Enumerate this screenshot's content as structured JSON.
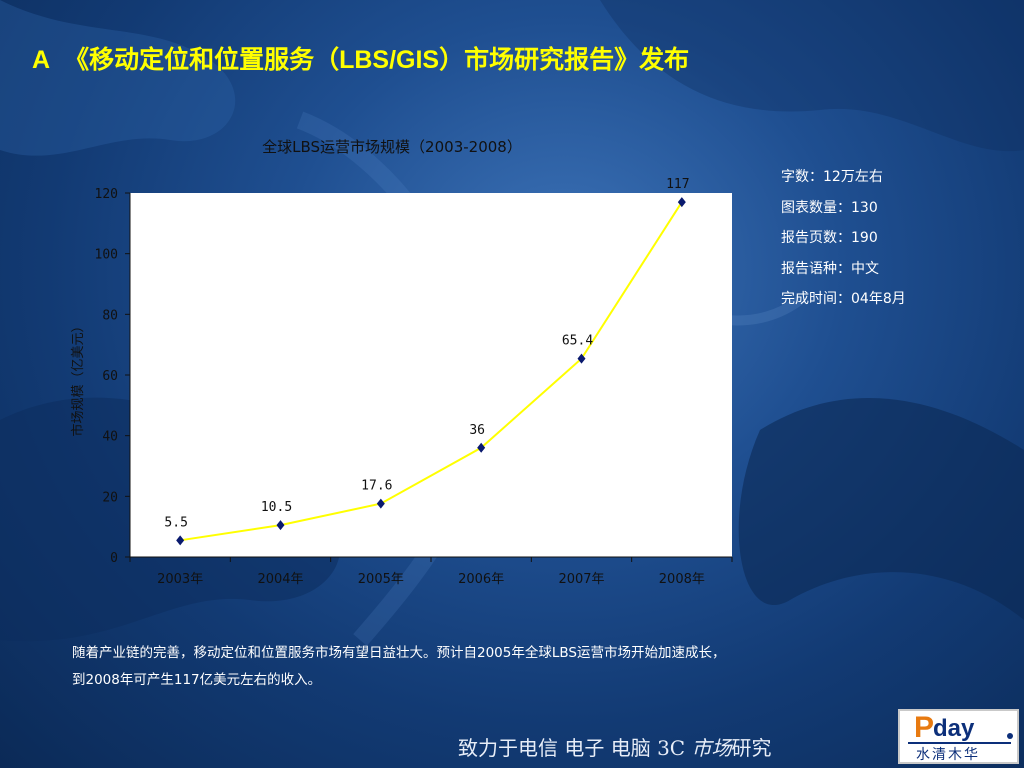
{
  "slide": {
    "title_letter": "A",
    "title": "《移动定位和位置服务（LBS/GIS）市场研究报告》发布",
    "footer_prefix": "致力于电信 电子 电脑 3C ",
    "footer_italic": "市场",
    "footer_suffix": "研究"
  },
  "info": [
    "字数：12万左右",
    "图表数量：130",
    "报告页数：190",
    "报告语种：中文",
    "完成时间：04年8月"
  ],
  "summary": "随着产业链的完善，移动定位和位置服务市场有望日益壮大。预计自2005年全球LBS运营市场开始加速成长，到2008年可产生117亿美元左右的收入。",
  "logo": {
    "p": "P",
    "day": "day",
    "cn": "水清木华"
  },
  "colors": {
    "title": "#ffff00",
    "line": "#ffff00",
    "marker": "#0a1a6e",
    "axis": "#111111"
  },
  "chart_data": {
    "type": "line",
    "title": "全球LBS运营市场规模（2003-2008）",
    "xlabel": "",
    "ylabel": "市场规模（亿美元）",
    "categories": [
      "2003年",
      "2004年",
      "2005年",
      "2006年",
      "2007年",
      "2008年"
    ],
    "values": [
      5.5,
      10.5,
      17.6,
      36,
      65.4,
      117
    ],
    "data_labels": [
      "5.5",
      "10.5",
      "17.6",
      "36",
      "65.4",
      "117"
    ],
    "yticks": [
      0,
      20,
      40,
      60,
      80,
      100,
      120
    ],
    "ylim": [
      0,
      120
    ],
    "grid": false,
    "legend": "none"
  }
}
